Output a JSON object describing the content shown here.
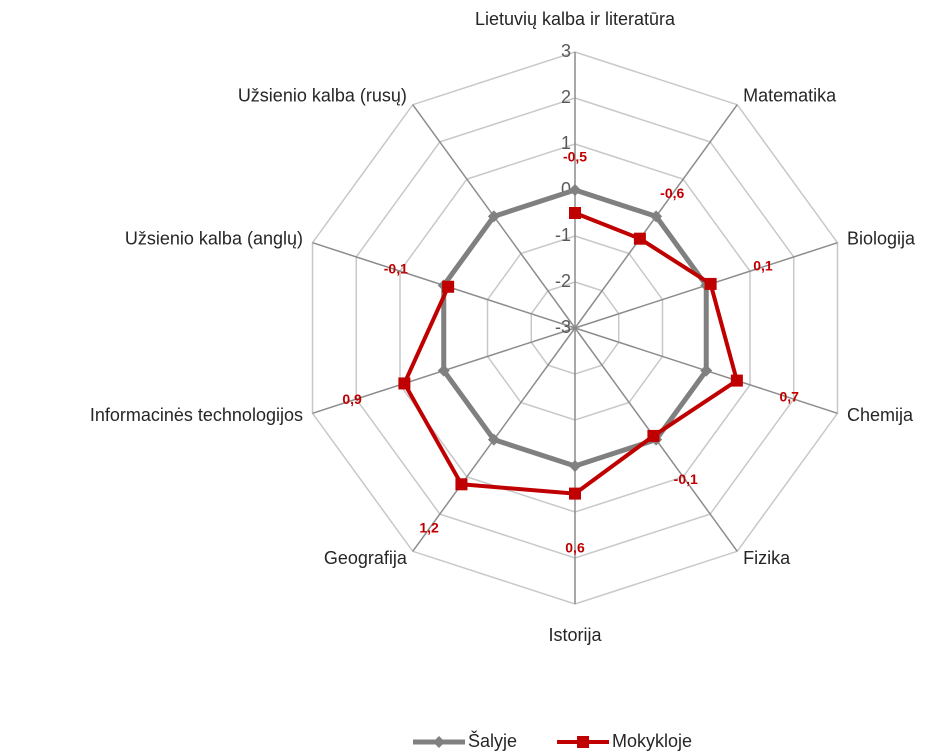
{
  "chart_data": {
    "type": "radar",
    "categories": [
      "Lietuvių kalba ir literatūra",
      "Matematika",
      "Biologija",
      "Chemija",
      "Fizika",
      "Istorija",
      "Geografija",
      "Informacinės technologijos",
      "Užsienio kalba (anglų)",
      "Užsienio kalba (rusų)"
    ],
    "series": [
      {
        "name": "Šalyje",
        "color": "#808080",
        "values": [
          0,
          0,
          0,
          0,
          0,
          0,
          0,
          0,
          0,
          0
        ]
      },
      {
        "name": "Mokykloje",
        "color": "#c00000",
        "values": [
          -0.5,
          -0.6,
          0.1,
          0.7,
          -0.1,
          0.6,
          1.2,
          0.9,
          -0.1,
          null
        ],
        "value_labels": [
          "-0,5",
          "-0,6",
          "0,1",
          "0,7",
          "-0,1",
          "0,6",
          "1,2",
          "0,9",
          "-0,1",
          null
        ]
      }
    ],
    "ylim": [
      -3,
      3
    ],
    "yticks": [
      -3,
      -2,
      -1,
      0,
      1,
      2,
      3
    ],
    "grid": true,
    "legend": "bottom"
  }
}
